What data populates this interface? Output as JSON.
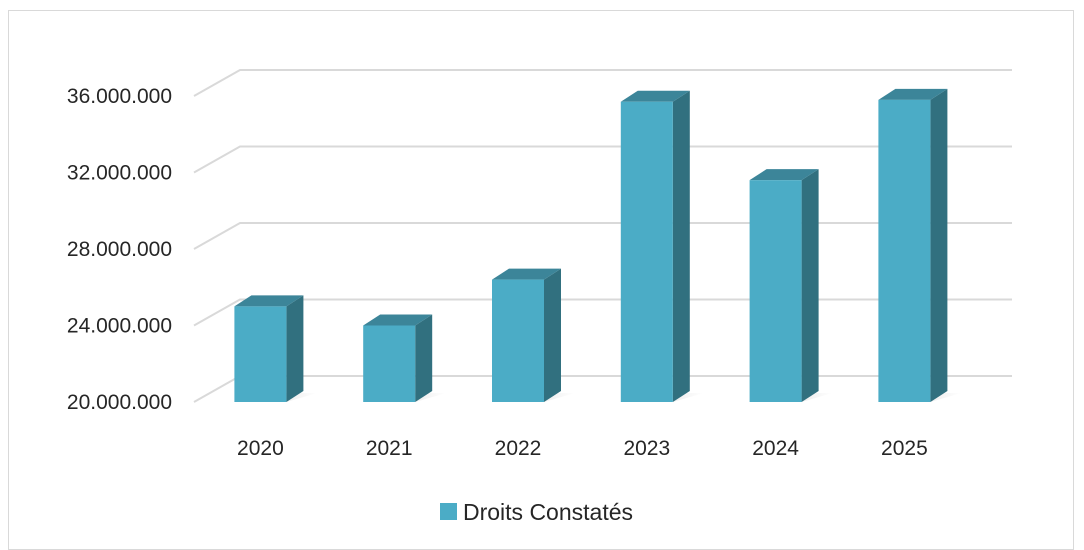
{
  "chart_data": {
    "type": "bar",
    "categories": [
      "2020",
      "2021",
      "2022",
      "2023",
      "2024",
      "2025"
    ],
    "series": [
      {
        "name": "Droits Constatés",
        "values": [
          25000000,
          24000000,
          26400000,
          35700000,
          31600000,
          35800000
        ],
        "color": "#4bacc6"
      }
    ],
    "y_ticks": [
      "20.000.000",
      "24.000.000",
      "28.000.000",
      "32.000.000",
      "36.000.000"
    ],
    "y_tick_values": [
      20000000,
      24000000,
      28000000,
      32000000,
      36000000
    ],
    "ylim": [
      20000000,
      36000000
    ],
    "grid": true,
    "legend_position": "bottom",
    "style": "3d-column",
    "colors": {
      "bar_front": "#4bacc6",
      "bar_side": "#31707f",
      "bar_top": "#3c8599",
      "gridline": "#d9d9d9",
      "text": "#262626"
    }
  }
}
